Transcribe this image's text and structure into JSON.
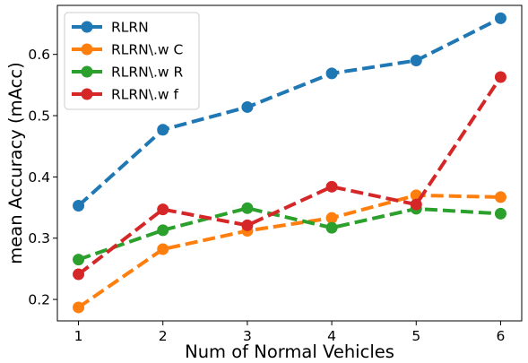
{
  "chart_data": {
    "type": "line",
    "xlabel": "Num of Normal Vehicles",
    "ylabel": "mean Accuracy (mAcc)",
    "x": [
      1,
      2,
      3,
      4,
      5,
      6
    ],
    "xlim": [
      0.75,
      6.25
    ],
    "ylim": [
      0.165,
      0.68
    ],
    "xticks": [
      "1",
      "2",
      "3",
      "4",
      "5",
      "6"
    ],
    "yticks": [
      "0.2",
      "0.3",
      "0.4",
      "0.5",
      "0.6"
    ],
    "grid": false,
    "legend_position": "top-left",
    "series": [
      {
        "name": "RLRN",
        "color": "#1f77b4",
        "line_style": "dashed",
        "marker": "circle",
        "values": [
          0.353,
          0.477,
          0.514,
          0.569,
          0.59,
          0.659
        ]
      },
      {
        "name": "RLRN\\.w C",
        "color": "#ff7f0e",
        "line_style": "dashed",
        "marker": "circle",
        "values": [
          0.187,
          0.282,
          0.312,
          0.333,
          0.37,
          0.367
        ]
      },
      {
        "name": "RLRN\\.w R",
        "color": "#2ca02c",
        "line_style": "dashed",
        "marker": "circle",
        "values": [
          0.265,
          0.313,
          0.349,
          0.317,
          0.348,
          0.34
        ]
      },
      {
        "name": "RLRN\\.w f",
        "color": "#d62728",
        "line_style": "dashed",
        "marker": "circle",
        "values": [
          0.241,
          0.347,
          0.321,
          0.384,
          0.355,
          0.563
        ]
      }
    ]
  }
}
